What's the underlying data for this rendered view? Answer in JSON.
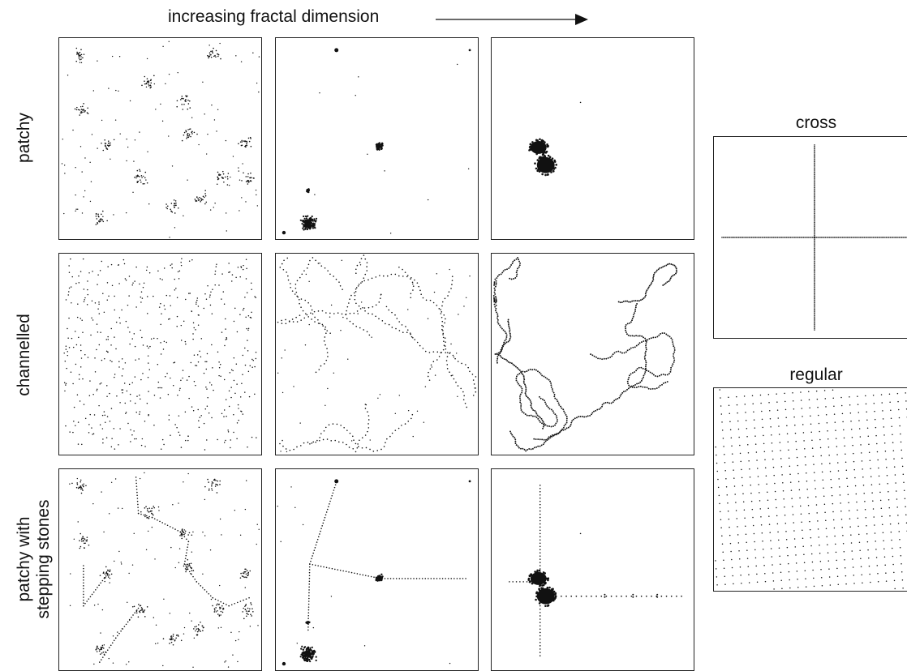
{
  "header": {
    "title": "increasing fractal dimension"
  },
  "rows": [
    {
      "label_lines": [
        "patchy"
      ]
    },
    {
      "label_lines": [
        "channelled"
      ]
    },
    {
      "label_lines": [
        "patchy with",
        "stepping stones"
      ]
    }
  ],
  "side_panels": {
    "cross": {
      "title": "cross"
    },
    "regular": {
      "title": "regular"
    }
  },
  "colors": {
    "ink": "#111111",
    "border": "#222222",
    "background": "#ffffff"
  },
  "icons": {
    "direction": "arrow-right-icon"
  }
}
